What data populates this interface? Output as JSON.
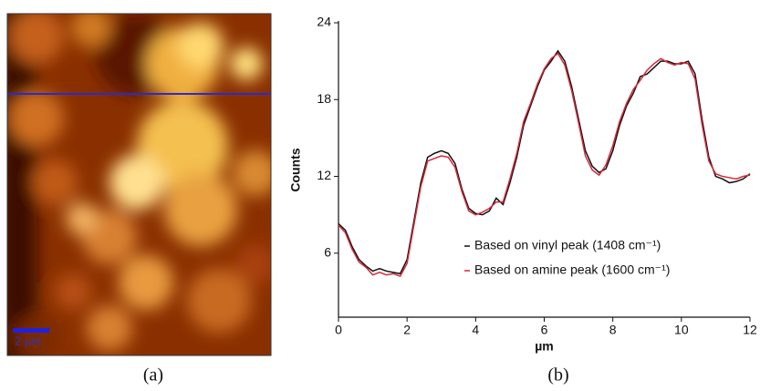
{
  "panel_a": {
    "scale_bar_label": "2 µm",
    "caption": "(a)"
  },
  "chart_data": {
    "type": "line",
    "caption": "(b)",
    "x_label": "µm",
    "y_label": "Counts",
    "x": [
      0,
      0.2,
      0.4,
      0.6,
      0.8,
      1,
      1.2,
      1.4,
      1.6,
      1.8,
      2,
      2.2,
      2.4,
      2.6,
      2.8,
      3,
      3.2,
      3.4,
      3.6,
      3.8,
      4,
      4.2,
      4.4,
      4.6,
      4.8,
      5,
      5.2,
      5.4,
      5.6,
      5.8,
      6,
      6.2,
      6.4,
      6.6,
      6.8,
      7,
      7.2,
      7.4,
      7.6,
      7.8,
      8,
      8.2,
      8.4,
      8.6,
      8.8,
      9,
      9.2,
      9.4,
      9.6,
      9.8,
      10,
      10.2,
      10.4,
      10.6,
      10.8,
      11,
      11.2,
      11.4,
      11.6,
      11.8,
      12
    ],
    "series": [
      {
        "name": "Based on vinyl peak (1408 cm⁻¹)",
        "color": "#111111",
        "values": [
          8.3,
          7.8,
          6.5,
          5.5,
          5.0,
          4.6,
          4.8,
          4.6,
          4.5,
          4.4,
          5.5,
          8.5,
          11.5,
          13.5,
          13.8,
          14.0,
          13.8,
          13.0,
          11.0,
          9.5,
          9.1,
          9.0,
          9.3,
          10.3,
          9.8,
          11.5,
          13.5,
          16.0,
          17.5,
          19.0,
          20.3,
          21.0,
          21.8,
          21.0,
          19.0,
          16.5,
          14.0,
          12.8,
          12.3,
          12.6,
          14.0,
          16.0,
          17.5,
          18.5,
          19.8,
          20.0,
          20.5,
          21.0,
          21.0,
          20.8,
          20.8,
          21.0,
          20.0,
          16.5,
          13.5,
          12.0,
          11.8,
          11.5,
          11.6,
          11.8,
          12.2
        ]
      },
      {
        "name": "Based on amine peak (1600 cm⁻¹)",
        "color": "#d62839",
        "values": [
          8.2,
          7.6,
          6.3,
          5.3,
          4.9,
          4.3,
          4.5,
          4.3,
          4.4,
          4.2,
          5.2,
          8.2,
          11.2,
          13.2,
          13.4,
          13.6,
          13.5,
          12.7,
          10.8,
          9.3,
          9.0,
          9.2,
          9.5,
          10.0,
          10.0,
          11.8,
          13.8,
          16.3,
          17.7,
          19.2,
          20.4,
          21.2,
          21.6,
          20.7,
          18.7,
          16.2,
          13.6,
          12.5,
          12.1,
          12.9,
          14.4,
          16.3,
          17.7,
          18.8,
          19.5,
          20.3,
          20.8,
          21.2,
          20.9,
          20.7,
          20.9,
          20.8,
          19.6,
          16.1,
          13.2,
          12.2,
          12.0,
          11.9,
          11.8,
          12.0,
          12.1
        ]
      }
    ],
    "xlim": [
      0,
      12
    ],
    "xticks": [
      0,
      2,
      4,
      6,
      8,
      10,
      12
    ],
    "ylim": [
      1,
      24
    ],
    "yticks": [
      6,
      12,
      18,
      24
    ]
  }
}
